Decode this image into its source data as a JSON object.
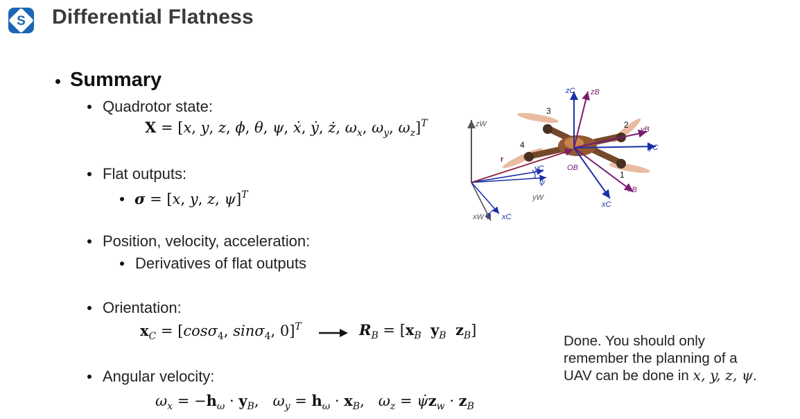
{
  "header": {
    "title": "Differential Flatness",
    "logo_icon": "s-logo-icon",
    "logo_color": "#1b67b4"
  },
  "summary": {
    "heading": "Summary",
    "items": [
      {
        "label": "Quadrotor state:",
        "formula": "X = [x, y, z, ϕ, θ, ψ, ẋ, ẏ, ż, ωx, ωy, ωz]T"
      },
      {
        "label": "Flat outputs:",
        "sub_formula": "σ = [x, y, z, ψ]T"
      },
      {
        "label": "Position, velocity, acceleration:",
        "sub_label": "Derivatives of flat outputs"
      },
      {
        "label": "Orientation:",
        "formula_left": "xC = [cosσ4, sinσ4, 0]T",
        "formula_right": "RB = [xB  yB  zB]"
      },
      {
        "label": "Angular velocity:",
        "formula": "ωx = −hω · yB,   ωy = hω · xB,   ωz = ψ̇zw · zB"
      }
    ]
  },
  "note": {
    "text_line1": "Done. You should only",
    "text_line2": "remember the planning of a",
    "text_line3_prefix": "UAV can be done in ",
    "text_line3_math": "x, y, z, ψ",
    "text_line3_suffix": "."
  },
  "diagram": {
    "labels": {
      "zw": "zW",
      "yw": "yW",
      "xw": "xW",
      "xc_bottom": "xC",
      "yc_mid": "yC",
      "psi_mid": "ψ",
      "psi_bottom": "ψ",
      "r": "r",
      "zc": "zC",
      "zb": "zB",
      "yb": "yB",
      "yc_right": "yC",
      "ob": "OB",
      "xb": "xB",
      "xc_right": "xC",
      "rotor1": "1",
      "rotor2": "2",
      "rotor3": "3",
      "rotor4": "4"
    },
    "colors": {
      "world": "#555555",
      "c_frame": "#1a2fa8",
      "b_frame": "#7a1a6e",
      "r_vec": "#8a1c3c"
    }
  }
}
